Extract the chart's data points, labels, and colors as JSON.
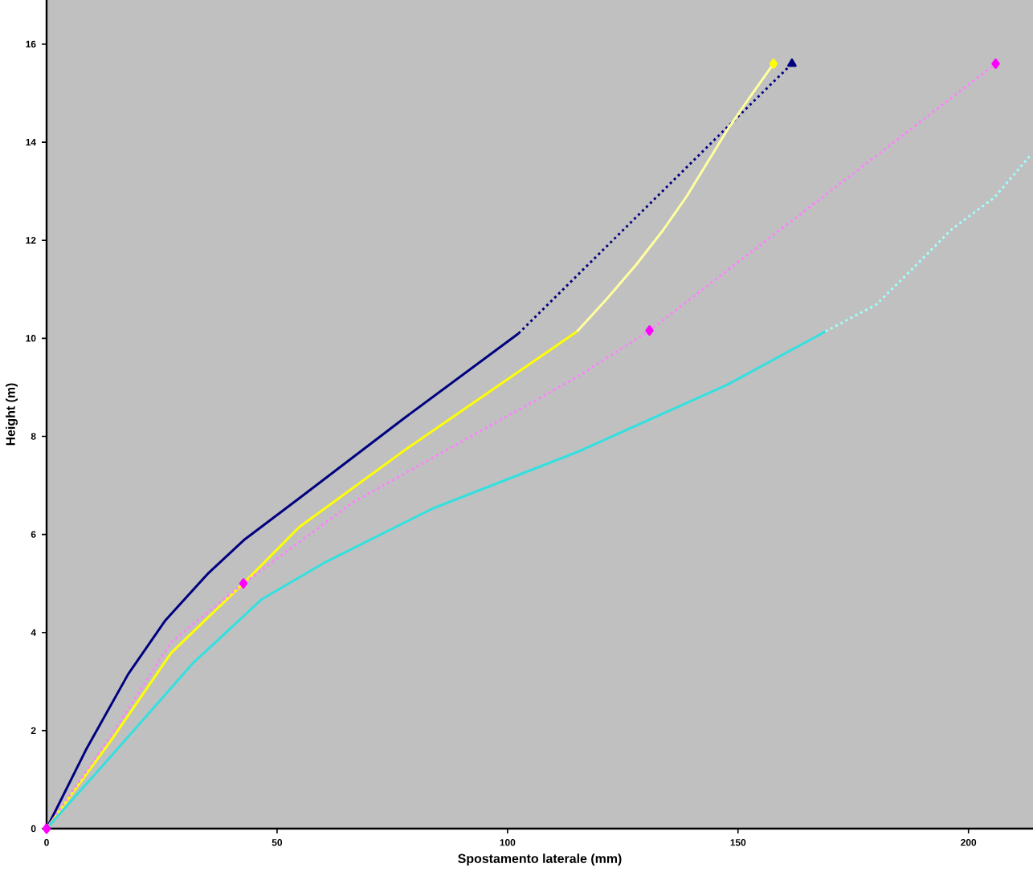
{
  "chart_data": {
    "type": "line",
    "xlabel": "Spostamento laterale (mm)",
    "ylabel": "Height (m)",
    "xlim": [
      0,
      214
    ],
    "ylim": [
      0,
      16.9
    ],
    "xticks": [
      0,
      50,
      100,
      150,
      200
    ],
    "yticks": [
      0,
      2,
      4,
      6,
      8,
      10,
      12,
      14,
      16
    ],
    "series": [
      {
        "color": "#000080",
        "line_style": "solid",
        "marker": "none",
        "x": [
          0,
          8.5,
          17.7,
          25.8,
          35,
          43,
          55,
          78,
          102.4
        ],
        "values": [
          0,
          1.6,
          3.15,
          4.25,
          5.2,
          5.9,
          6.75,
          8.4,
          10.1
        ]
      },
      {
        "color": "#000080",
        "line_style": "dotted",
        "marker": "none",
        "x": [
          102.4,
          147.6,
          161.7
        ],
        "values": [
          10.1,
          14.3,
          15.6
        ]
      },
      {
        "type": "scatter",
        "color": "#000080",
        "marker": "triangle",
        "x": [
          161.7
        ],
        "values": [
          15.6
        ]
      },
      {
        "color": "#ffff00",
        "line_style": "solid",
        "marker": "none",
        "x": [
          0,
          14.3,
          27,
          42.7,
          54.8,
          78,
          115.1
        ],
        "values": [
          0,
          1.84,
          3.58,
          5.0,
          6.15,
          7.74,
          10.14
        ]
      },
      {
        "color": "#ffffa0",
        "line_style": "solid",
        "marker": "none",
        "x": [
          115.1,
          121.5,
          127.9,
          133.7,
          138.9,
          147.6,
          152.8,
          157.7
        ],
        "values": [
          10.14,
          10.8,
          11.5,
          12.2,
          12.9,
          14.24,
          14.95,
          15.6
        ]
      },
      {
        "type": "scatter",
        "color": "#ffff00",
        "marker": "diamond",
        "x": [
          157.7
        ],
        "values": [
          15.6
        ]
      },
      {
        "color": "#ff80ff",
        "line_style": "dotted",
        "marker": "none",
        "x": [
          0,
          14.3,
          27,
          42.7,
          66.4,
          115.1,
          130.8,
          205.9
        ],
        "values": [
          0,
          1.94,
          3.8,
          5.0,
          6.65,
          9.21,
          10.16,
          15.6
        ]
      },
      {
        "type": "scatter",
        "color": "#ff00ff",
        "marker": "diamond",
        "x": [
          0,
          42.7,
          130.8,
          205.9
        ],
        "values": [
          0,
          5.0,
          10.16,
          15.6
        ]
      },
      {
        "color": "#33e0e0",
        "line_style": "solid",
        "marker": "none",
        "x": [
          0,
          14.3,
          31.7,
          46.7,
          60.6,
          83.8,
          115.1,
          147.6,
          169
        ],
        "values": [
          0,
          1.51,
          3.37,
          4.68,
          5.44,
          6.53,
          7.68,
          9.05,
          10.14
        ]
      },
      {
        "color": "#a0ffff",
        "line_style": "dotted",
        "marker": "none",
        "x": [
          169,
          180,
          188.2,
          196.3,
          205.6,
          213.6
        ],
        "values": [
          10.14,
          10.69,
          11.45,
          12.22,
          12.87,
          13.75
        ]
      }
    ]
  }
}
